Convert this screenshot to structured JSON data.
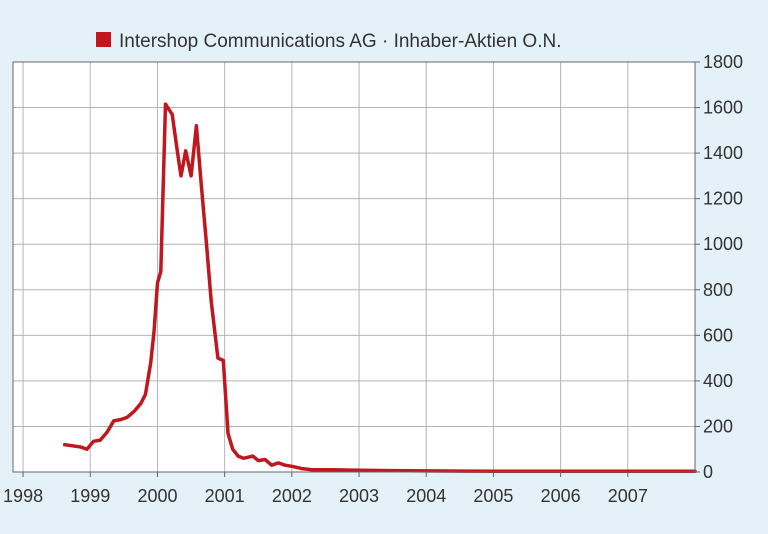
{
  "chart_data": {
    "type": "line",
    "title": "",
    "xlabel": "",
    "ylabel": "",
    "legend": {
      "placement": "top-left",
      "entries": [
        "Intershop Communications AG · Inhaber-Aktien O.N."
      ]
    },
    "grid": true,
    "xlim": [
      1997.85,
      2008.0
    ],
    "ylim": [
      0,
      1800
    ],
    "x_ticks": [
      1998,
      1999,
      2000,
      2001,
      2002,
      2003,
      2004,
      2005,
      2006,
      2007
    ],
    "x_tick_labels": [
      "1998",
      "1999",
      "2000",
      "2001",
      "2002",
      "2003",
      "2004",
      "2005",
      "2006",
      "2007"
    ],
    "y_ticks": [
      0,
      200,
      400,
      600,
      800,
      1000,
      1200,
      1400,
      1600,
      1800
    ],
    "y_tick_labels": [
      "0",
      "200",
      "400",
      "600",
      "800",
      "1000",
      "1200",
      "1400",
      "1600",
      "1800"
    ],
    "colors": {
      "line": "#c0171f",
      "background": "#e4f1f8",
      "plot_bg": "#ffffff",
      "grid": "#b4b4b4",
      "frame": "#666666"
    },
    "series": [
      {
        "name": "Intershop Communications AG · Inhaber-Aktien O.N.",
        "x": [
          1998.62,
          1998.85,
          1998.95,
          1999.05,
          1999.15,
          1999.25,
          1999.35,
          1999.45,
          1999.55,
          1999.65,
          1999.75,
          1999.82,
          1999.9,
          1999.95,
          2000.0,
          2000.05,
          2000.12,
          2000.22,
          2000.3,
          2000.35,
          2000.42,
          2000.5,
          2000.58,
          2000.65,
          2000.73,
          2000.8,
          2000.9,
          2000.98,
          2001.05,
          2001.12,
          2001.2,
          2001.28,
          2001.35,
          2001.42,
          2001.5,
          2001.6,
          2001.7,
          2001.8,
          2001.9,
          2002.0,
          2002.15,
          2002.3,
          2002.6,
          2003.0,
          2003.5,
          2004.0,
          2004.5,
          2005.0,
          2006.0,
          2007.0,
          2008.0
        ],
        "values": [
          120,
          110,
          100,
          135,
          140,
          175,
          225,
          230,
          240,
          265,
          300,
          340,
          480,
          620,
          830,
          880,
          1615,
          1570,
          1400,
          1300,
          1410,
          1300,
          1520,
          1270,
          1000,
          750,
          500,
          490,
          170,
          100,
          70,
          60,
          65,
          70,
          50,
          55,
          30,
          40,
          30,
          25,
          15,
          10,
          10,
          8,
          6,
          5,
          4,
          3,
          3,
          3,
          3
        ]
      }
    ]
  }
}
